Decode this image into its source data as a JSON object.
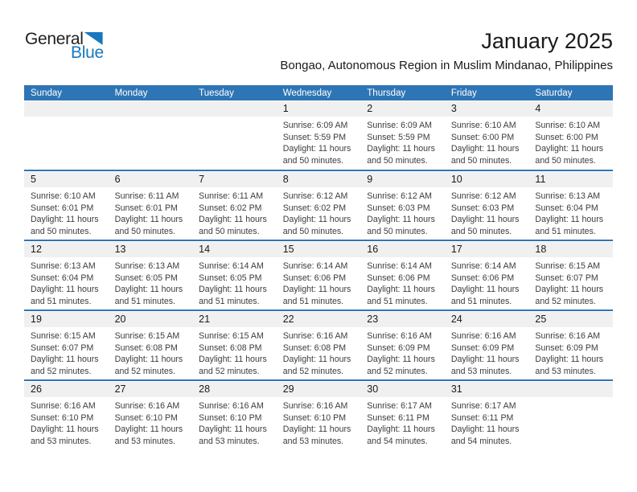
{
  "page": {
    "title": "January 2025",
    "subtitle": "Bongao, Autonomous Region in Muslim Mindanao, Philippines"
  },
  "logo": {
    "line1": "General",
    "line2": "Blue"
  },
  "colors": {
    "header_bg": "#2E75B5",
    "divider": "#2E75B5",
    "strip_bg": "#F0F0F0",
    "logo_blue": "#1878BE"
  },
  "calendar": {
    "weekday_headers": [
      "Sunday",
      "Monday",
      "Tuesday",
      "Wednesday",
      "Thursday",
      "Friday",
      "Saturday"
    ],
    "labels": {
      "sunrise": "Sunrise:",
      "sunset": "Sunset:",
      "daylight": "Daylight:"
    },
    "weeks": [
      {
        "days": [
          null,
          null,
          null,
          {
            "day": "1",
            "sunrise": "6:09 AM",
            "sunset": "5:59 PM",
            "daylight": "11 hours and 50 minutes."
          },
          {
            "day": "2",
            "sunrise": "6:09 AM",
            "sunset": "5:59 PM",
            "daylight": "11 hours and 50 minutes."
          },
          {
            "day": "3",
            "sunrise": "6:10 AM",
            "sunset": "6:00 PM",
            "daylight": "11 hours and 50 minutes."
          },
          {
            "day": "4",
            "sunrise": "6:10 AM",
            "sunset": "6:00 PM",
            "daylight": "11 hours and 50 minutes."
          }
        ]
      },
      {
        "days": [
          {
            "day": "5",
            "sunrise": "6:10 AM",
            "sunset": "6:01 PM",
            "daylight": "11 hours and 50 minutes."
          },
          {
            "day": "6",
            "sunrise": "6:11 AM",
            "sunset": "6:01 PM",
            "daylight": "11 hours and 50 minutes."
          },
          {
            "day": "7",
            "sunrise": "6:11 AM",
            "sunset": "6:02 PM",
            "daylight": "11 hours and 50 minutes."
          },
          {
            "day": "8",
            "sunrise": "6:12 AM",
            "sunset": "6:02 PM",
            "daylight": "11 hours and 50 minutes."
          },
          {
            "day": "9",
            "sunrise": "6:12 AM",
            "sunset": "6:03 PM",
            "daylight": "11 hours and 50 minutes."
          },
          {
            "day": "10",
            "sunrise": "6:12 AM",
            "sunset": "6:03 PM",
            "daylight": "11 hours and 50 minutes."
          },
          {
            "day": "11",
            "sunrise": "6:13 AM",
            "sunset": "6:04 PM",
            "daylight": "11 hours and 51 minutes."
          }
        ]
      },
      {
        "days": [
          {
            "day": "12",
            "sunrise": "6:13 AM",
            "sunset": "6:04 PM",
            "daylight": "11 hours and 51 minutes."
          },
          {
            "day": "13",
            "sunrise": "6:13 AM",
            "sunset": "6:05 PM",
            "daylight": "11 hours and 51 minutes."
          },
          {
            "day": "14",
            "sunrise": "6:14 AM",
            "sunset": "6:05 PM",
            "daylight": "11 hours and 51 minutes."
          },
          {
            "day": "15",
            "sunrise": "6:14 AM",
            "sunset": "6:06 PM",
            "daylight": "11 hours and 51 minutes."
          },
          {
            "day": "16",
            "sunrise": "6:14 AM",
            "sunset": "6:06 PM",
            "daylight": "11 hours and 51 minutes."
          },
          {
            "day": "17",
            "sunrise": "6:14 AM",
            "sunset": "6:06 PM",
            "daylight": "11 hours and 51 minutes."
          },
          {
            "day": "18",
            "sunrise": "6:15 AM",
            "sunset": "6:07 PM",
            "daylight": "11 hours and 52 minutes."
          }
        ]
      },
      {
        "days": [
          {
            "day": "19",
            "sunrise": "6:15 AM",
            "sunset": "6:07 PM",
            "daylight": "11 hours and 52 minutes."
          },
          {
            "day": "20",
            "sunrise": "6:15 AM",
            "sunset": "6:08 PM",
            "daylight": "11 hours and 52 minutes."
          },
          {
            "day": "21",
            "sunrise": "6:15 AM",
            "sunset": "6:08 PM",
            "daylight": "11 hours and 52 minutes."
          },
          {
            "day": "22",
            "sunrise": "6:16 AM",
            "sunset": "6:08 PM",
            "daylight": "11 hours and 52 minutes."
          },
          {
            "day": "23",
            "sunrise": "6:16 AM",
            "sunset": "6:09 PM",
            "daylight": "11 hours and 52 minutes."
          },
          {
            "day": "24",
            "sunrise": "6:16 AM",
            "sunset": "6:09 PM",
            "daylight": "11 hours and 53 minutes."
          },
          {
            "day": "25",
            "sunrise": "6:16 AM",
            "sunset": "6:09 PM",
            "daylight": "11 hours and 53 minutes."
          }
        ]
      },
      {
        "days": [
          {
            "day": "26",
            "sunrise": "6:16 AM",
            "sunset": "6:10 PM",
            "daylight": "11 hours and 53 minutes."
          },
          {
            "day": "27",
            "sunrise": "6:16 AM",
            "sunset": "6:10 PM",
            "daylight": "11 hours and 53 minutes."
          },
          {
            "day": "28",
            "sunrise": "6:16 AM",
            "sunset": "6:10 PM",
            "daylight": "11 hours and 53 minutes."
          },
          {
            "day": "29",
            "sunrise": "6:16 AM",
            "sunset": "6:10 PM",
            "daylight": "11 hours and 53 minutes."
          },
          {
            "day": "30",
            "sunrise": "6:17 AM",
            "sunset": "6:11 PM",
            "daylight": "11 hours and 54 minutes."
          },
          {
            "day": "31",
            "sunrise": "6:17 AM",
            "sunset": "6:11 PM",
            "daylight": "11 hours and 54 minutes."
          },
          null
        ]
      }
    ]
  }
}
